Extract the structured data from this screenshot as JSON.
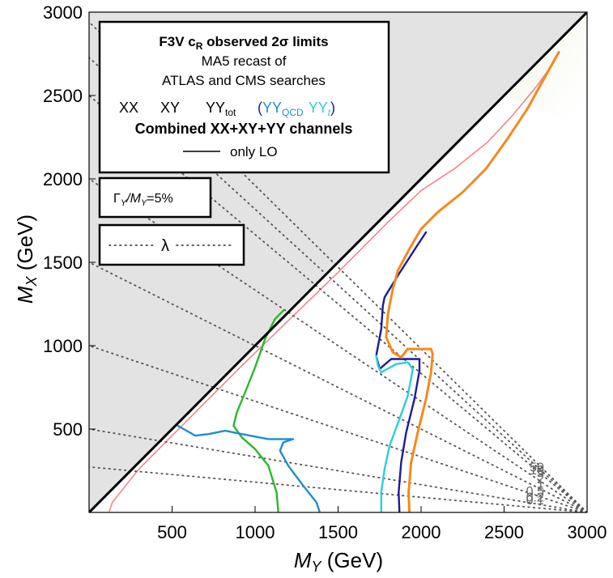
{
  "chart_data": {
    "type": "line",
    "title": "F3V c_R observed 2σ limits",
    "subtitle_lines": [
      "MA5 recast of",
      "ATLAS and CMS searches"
    ],
    "xlabel": "M_Y (GeV)",
    "ylabel": "M_X (GeV)",
    "xlabel_main": "M",
    "xlabel_sub": "Y",
    "xlabel_unit": " (GeV)",
    "ylabel_main": "M",
    "ylabel_sub": "X",
    "ylabel_unit": " (GeV)",
    "xlim": [
      0,
      3000
    ],
    "ylim": [
      0,
      3000
    ],
    "xticks": [
      500,
      1000,
      1500,
      2000,
      2500,
      3000
    ],
    "yticks": [
      500,
      1000,
      1500,
      2000,
      2500,
      3000
    ],
    "excluded_region": "M_X > M_Y",
    "legend": {
      "title_main": "F3V c",
      "title_sub": "R",
      "title_rest": " observed 2σ limits",
      "line2": "MA5 recast of",
      "line3": "ATLAS and CMS searches",
      "xx": "XX",
      "xy": "XY",
      "yytot_main": "YY",
      "yytot_sub": "tot",
      "paren_open": "(",
      "yyqcd_main": "YY",
      "yyqcd_sub": "QCD",
      "yyt_main": "YY",
      "yyt_sub": "t",
      "paren_close": ")",
      "combined": "Combined XX+XY+YY channels",
      "lo": "only LO",
      "width_label_g": "Γ",
      "width_label_y": "Y",
      "width_label_m": "/M",
      "width_label_y2": "Y",
      "width_label_val": "=5%",
      "lambda": "λ"
    },
    "colors": {
      "xx": "#e8242c",
      "xy": "#2cb72c",
      "yytot": "#1a1aa0",
      "yyqcd": "#1f8ed0",
      "yyt": "#2ad0d8",
      "combined": "#f58a1c",
      "lo": "#000000",
      "excluded": "#e3e3e3"
    },
    "lambda_lines": [
      {
        "label": "0.1",
        "slope": 0.1
      },
      {
        "label": "0.2",
        "slope": 0.2
      },
      {
        "label": "0.5",
        "slope": 0.5
      },
      {
        "label": "1",
        "slope": 1.0
      },
      {
        "label": "2",
        "slope": 2.0
      },
      {
        "label": "5",
        "slope": 5.0
      },
      {
        "label": "10",
        "slope": 10.0
      },
      {
        "label": "50",
        "slope": 50.0
      }
    ],
    "lambda_definition": "M_X = slope × (3000 − M_Y)/... shown as rays from (3000,0)",
    "series": [
      {
        "name": "XX",
        "color_key": "xx",
        "width": 1.6,
        "points": [
          [
            120,
            0
          ],
          [
            140,
            60
          ],
          [
            300,
            260
          ],
          [
            500,
            460
          ],
          [
            700,
            660
          ],
          [
            900,
            860
          ],
          [
            1200,
            1150
          ],
          [
            1500,
            1440
          ],
          [
            1800,
            1740
          ],
          [
            2000,
            1930
          ],
          [
            2200,
            2060
          ],
          [
            2400,
            2220
          ],
          [
            2550,
            2380
          ],
          [
            2700,
            2560
          ],
          [
            2800,
            2700
          ]
        ]
      },
      {
        "name": "XY",
        "color_key": "xy",
        "width": 2.4,
        "points": [
          [
            1140,
            0
          ],
          [
            1130,
            120
          ],
          [
            1080,
            280
          ],
          [
            1000,
            380
          ],
          [
            920,
            450
          ],
          [
            870,
            520
          ],
          [
            890,
            600
          ],
          [
            940,
            720
          ],
          [
            1000,
            870
          ],
          [
            1060,
            1040
          ],
          [
            1120,
            1160
          ],
          [
            1170,
            1210
          ]
        ]
      },
      {
        "name": "YY_QCD",
        "color_key": "yyqcd",
        "width": 2.4,
        "points": [
          [
            1390,
            0
          ],
          [
            1370,
            60
          ],
          [
            1290,
            160
          ],
          [
            1200,
            280
          ],
          [
            1150,
            370
          ],
          [
            1170,
            420
          ],
          [
            1230,
            440
          ],
          [
            1080,
            440
          ],
          [
            920,
            470
          ],
          [
            820,
            490
          ],
          [
            720,
            470
          ],
          [
            640,
            460
          ],
          [
            570,
            500
          ],
          [
            535,
            520
          ]
        ]
      },
      {
        "name": "YY_tot",
        "color_key": "yytot",
        "width": 2.4,
        "points": [
          [
            1870,
            0
          ],
          [
            1865,
            120
          ],
          [
            1880,
            300
          ],
          [
            1910,
            480
          ],
          [
            1960,
            680
          ],
          [
            1990,
            850
          ],
          [
            1990,
            920
          ],
          [
            1820,
            920
          ],
          [
            1750,
            860
          ],
          [
            1730,
            940
          ],
          [
            1760,
            1100
          ],
          [
            1770,
            1240
          ],
          [
            1780,
            1290
          ],
          [
            1860,
            1420
          ],
          [
            1970,
            1590
          ],
          [
            2030,
            1680
          ]
        ]
      },
      {
        "name": "YY_t",
        "color_key": "yyt",
        "width": 2.4,
        "points": [
          [
            1760,
            0
          ],
          [
            1760,
            120
          ],
          [
            1780,
            260
          ],
          [
            1810,
            400
          ],
          [
            1870,
            560
          ],
          [
            1920,
            700
          ],
          [
            1950,
            860
          ],
          [
            1920,
            900
          ],
          [
            1850,
            890
          ],
          [
            1760,
            840
          ],
          [
            1740,
            880
          ],
          [
            1730,
            940
          ]
        ]
      },
      {
        "name": "Combined",
        "color_key": "combined",
        "width": 3.0,
        "points": [
          [
            1930,
            0
          ],
          [
            1925,
            120
          ],
          [
            1940,
            300
          ],
          [
            1980,
            480
          ],
          [
            2030,
            680
          ],
          [
            2060,
            840
          ],
          [
            2070,
            950
          ],
          [
            2060,
            980
          ],
          [
            1920,
            980
          ],
          [
            1880,
            930
          ],
          [
            1830,
            960
          ],
          [
            1790,
            1050
          ],
          [
            1800,
            1190
          ],
          [
            1830,
            1340
          ],
          [
            1860,
            1450
          ],
          [
            1930,
            1580
          ],
          [
            2000,
            1700
          ],
          [
            2100,
            1800
          ],
          [
            2250,
            1920
          ],
          [
            2390,
            2060
          ],
          [
            2520,
            2240
          ],
          [
            2640,
            2420
          ],
          [
            2740,
            2600
          ],
          [
            2830,
            2760
          ]
        ]
      }
    ]
  }
}
